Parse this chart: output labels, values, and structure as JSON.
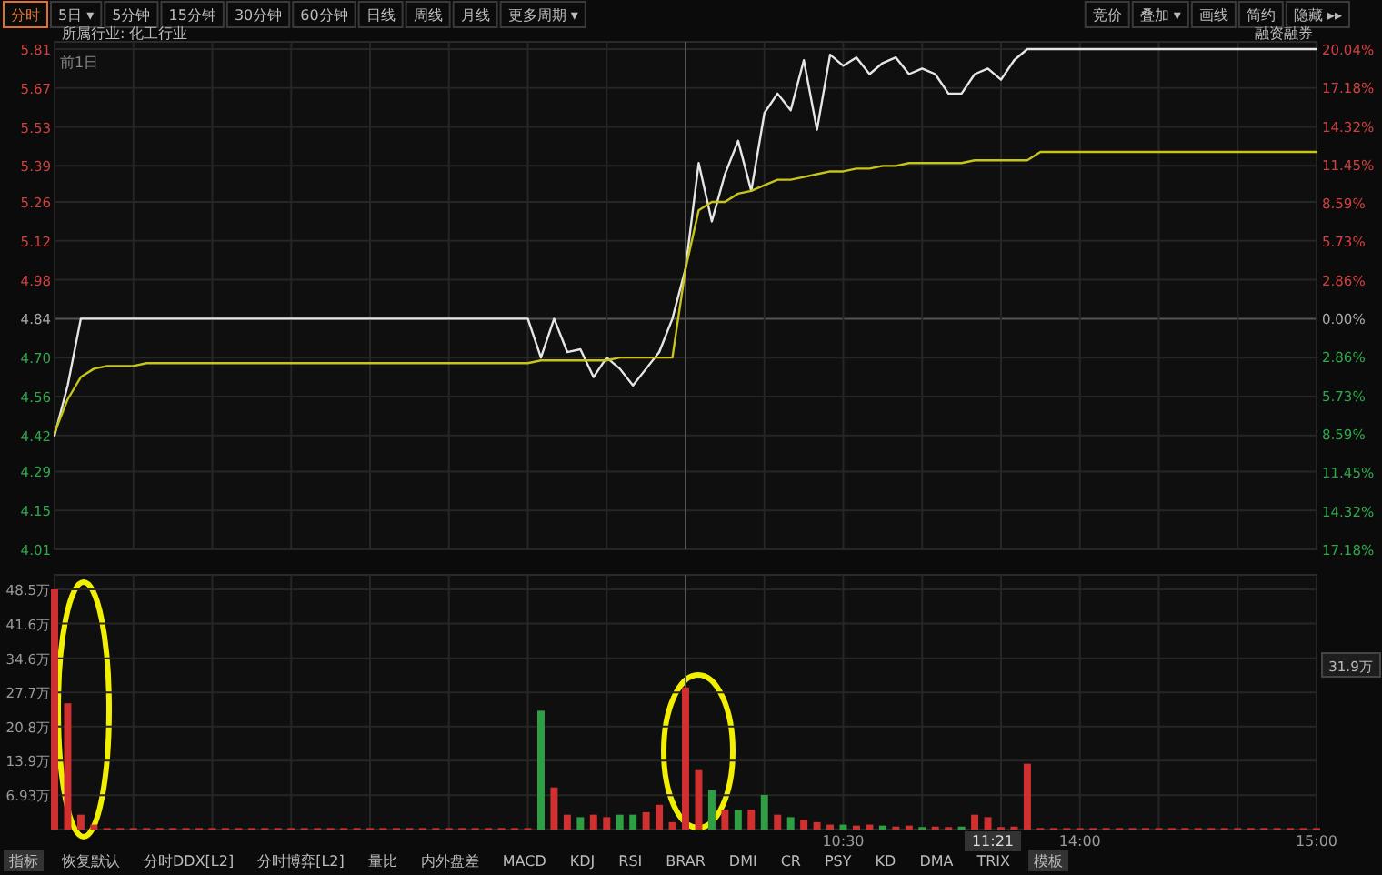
{
  "chart_data": [
    {
      "type": "line",
      "categories": [
        null,
        null,
        null,
        null,
        null,
        null,
        null,
        null,
        null,
        null,
        null,
        null,
        null,
        null,
        null,
        null,
        null,
        null,
        null,
        null,
        null,
        null,
        null,
        null,
        null,
        null,
        null,
        null,
        null,
        null,
        null,
        null,
        null,
        null,
        null,
        null,
        null,
        null,
        null,
        null,
        null,
        null,
        null,
        null,
        null,
        null,
        null,
        null,
        null,
        null,
        null,
        null,
        null,
        null,
        null,
        null,
        null,
        null,
        null,
        null,
        null,
        null,
        null,
        null,
        null,
        null,
        null,
        null,
        null,
        null,
        null,
        null,
        null,
        null,
        null,
        null,
        null,
        null,
        null,
        null,
        null,
        null,
        null,
        null,
        null,
        null,
        null,
        null,
        null,
        null,
        null,
        null,
        null,
        null,
        null,
        null,
        null
      ],
      "series": [
        {
          "color": "#e6e6e6",
          "values": [
            4.42,
            4.6,
            4.84,
            4.84,
            4.84,
            4.84,
            4.84,
            4.84,
            4.84,
            4.84,
            4.84,
            4.84,
            4.84,
            4.84,
            4.84,
            4.84,
            4.84,
            4.84,
            4.84,
            4.84,
            4.84,
            4.84,
            4.84,
            4.84,
            4.84,
            4.84,
            4.84,
            4.84,
            4.84,
            4.84,
            4.84,
            4.84,
            4.84,
            4.84,
            4.84,
            4.84,
            4.84,
            4.7,
            4.84,
            4.72,
            4.73,
            4.63,
            4.7,
            4.66,
            4.6,
            4.66,
            4.72,
            4.84,
            5.02,
            5.4,
            5.19,
            5.36,
            5.48,
            5.3,
            5.58,
            5.65,
            5.59,
            5.77,
            5.52,
            5.79,
            5.75,
            5.78,
            5.72,
            5.76,
            5.78,
            5.72,
            5.74,
            5.72,
            5.65,
            5.65,
            5.72,
            5.74,
            5.7,
            5.77,
            5.81,
            5.81,
            5.81,
            5.81,
            5.81,
            5.81,
            5.81,
            5.81,
            5.81,
            5.81,
            5.81,
            5.81,
            5.81,
            5.81,
            5.81,
            5.81,
            5.81,
            5.81,
            5.81,
            5.81,
            5.81,
            5.81,
            5.81
          ]
        },
        {
          "color": "#c8c41a",
          "values": [
            4.43,
            4.55,
            4.63,
            4.66,
            4.67,
            4.67,
            4.67,
            4.68,
            4.68,
            4.68,
            4.68,
            4.68,
            4.68,
            4.68,
            4.68,
            4.68,
            4.68,
            4.68,
            4.68,
            4.68,
            4.68,
            4.68,
            4.68,
            4.68,
            4.68,
            4.68,
            4.68,
            4.68,
            4.68,
            4.68,
            4.68,
            4.68,
            4.68,
            4.68,
            4.68,
            4.68,
            4.68,
            4.69,
            4.69,
            4.69,
            4.69,
            4.69,
            4.69,
            4.7,
            4.7,
            4.7,
            4.7,
            4.7,
            5.02,
            5.23,
            5.26,
            5.26,
            5.29,
            5.3,
            5.32,
            5.34,
            5.34,
            5.35,
            5.36,
            5.37,
            5.37,
            5.38,
            5.38,
            5.39,
            5.39,
            5.4,
            5.4,
            5.4,
            5.4,
            5.4,
            5.41,
            5.41,
            5.41,
            5.41,
            5.41,
            5.44,
            5.44,
            5.44,
            5.44,
            5.44,
            5.44,
            5.44,
            5.44,
            5.44,
            5.44,
            5.44,
            5.44,
            5.44,
            5.44,
            5.44,
            5.44,
            5.44,
            5.44,
            5.44,
            5.44,
            5.44,
            5.44
          ]
        }
      ],
      "ylim": [
        4.01,
        5.81
      ],
      "yticks": [
        5.81,
        5.67,
        5.53,
        5.39,
        5.26,
        5.12,
        4.98,
        4.84,
        {
          "value": 4.7,
          "label": "4.70"
        },
        4.56,
        4.42,
        4.29,
        4.15,
        4.01
      ],
      "y2lim": [
        -17.18,
        20.04
      ],
      "y2ticks": [
        {
          "value": 20.04,
          "label": "20.04%"
        },
        {
          "value": 17.18,
          "label": "17.18%"
        },
        {
          "value": 14.32,
          "label": "14.32%"
        },
        {
          "value": 11.45,
          "label": "11.45%"
        },
        {
          "value": 8.59,
          "label": "8.59%"
        },
        {
          "value": 5.73,
          "label": "5.73%"
        },
        {
          "value": 2.86,
          "label": "2.86%"
        },
        {
          "value": 0,
          "label": "0.00%"
        },
        {
          "value": -2.86,
          "label": "2.86%"
        },
        {
          "value": -5.73,
          "label": "5.73%"
        },
        {
          "value": -8.59,
          "label": "8.59%"
        },
        {
          "value": -11.45,
          "label": "11.45%"
        },
        {
          "value": -14.32,
          "label": "14.32%"
        },
        {
          "value": -17.18,
          "label": "17.18%"
        }
      ],
      "grid": true,
      "annotations": [
        "分时",
        "5日 ▾",
        "5分钟",
        "15分钟",
        "30分钟",
        "60分钟",
        "日线",
        "周线",
        "月线",
        "更多周期 ▾",
        "竞价",
        "叠加 ▾",
        "画线",
        "简约",
        "隐藏 ▸▸",
        "所属行业: 化工行业",
        "前1日",
        "融资融券"
      ]
    },
    {
      "type": "bar",
      "categories": [
        null,
        null,
        null,
        null,
        null,
        null,
        null,
        null,
        null,
        null,
        null,
        null,
        null,
        null,
        null,
        null,
        null,
        null,
        null,
        null,
        null,
        null,
        null,
        null,
        null,
        null,
        null,
        null,
        null,
        null,
        null,
        null,
        null,
        null,
        null,
        null,
        null,
        null,
        null,
        null,
        null,
        null,
        null,
        null,
        null,
        null,
        null,
        null,
        null,
        null,
        null,
        null,
        null,
        null,
        null,
        null,
        null,
        null,
        null,
        null,
        "10:30",
        null,
        null,
        null,
        null,
        null,
        null,
        null,
        null,
        null,
        null,
        null,
        null,
        null,
        null,
        null,
        null,
        null,
        "14:00",
        null,
        null,
        null,
        null,
        null,
        null,
        null,
        null,
        null,
        null,
        null,
        null,
        null,
        null,
        null,
        null,
        null,
        "15:00"
      ],
      "values": [
        48.5,
        25.5,
        3,
        1,
        0.3,
        0.3,
        0.3,
        0.3,
        0.3,
        0.3,
        0.3,
        0.3,
        0.3,
        0.3,
        0.3,
        0.3,
        0.3,
        0.3,
        0.3,
        0.3,
        0.3,
        0.3,
        0.3,
        0.3,
        0.3,
        0.3,
        0.3,
        0.3,
        0.3,
        0.3,
        0.3,
        0.3,
        0.3,
        0.3,
        0.3,
        0.3,
        0.3,
        24,
        8.5,
        3,
        2.5,
        3,
        2.5,
        3,
        3,
        3.5,
        5,
        1.5,
        28.7,
        12,
        8,
        4,
        4,
        4,
        7,
        3,
        2.5,
        2,
        1.5,
        1,
        1,
        0.8,
        1,
        0.8,
        0.6,
        0.8,
        0.5,
        0.6,
        0.5,
        0.6,
        3,
        2.5,
        0.5,
        0.6,
        13.3,
        0.3,
        0.3,
        0.3,
        0.3,
        0.3,
        0.3,
        0.3,
        0.3,
        0.3,
        0.3,
        0.3,
        0.3,
        0.3,
        0.3,
        0.3,
        0.3,
        0.3,
        0.3,
        0.3,
        0.3,
        0.3,
        0.3
      ],
      "colors": [
        "#d03030",
        "#d03030",
        "#d03030",
        "#d03030",
        "#d03030",
        "#d03030",
        "#d03030",
        "#d03030",
        "#d03030",
        "#d03030",
        "#d03030",
        "#d03030",
        "#d03030",
        "#d03030",
        "#d03030",
        "#d03030",
        "#d03030",
        "#d03030",
        "#d03030",
        "#d03030",
        "#d03030",
        "#d03030",
        "#d03030",
        "#d03030",
        "#d03030",
        "#d03030",
        "#d03030",
        "#d03030",
        "#d03030",
        "#d03030",
        "#d03030",
        "#d03030",
        "#d03030",
        "#d03030",
        "#d03030",
        "#d03030",
        "#d03030",
        "#2ea043",
        "#d03030",
        "#d03030",
        "#2ea043",
        "#d03030",
        "#d03030",
        "#2ea043",
        "#2ea043",
        "#d03030",
        "#d03030",
        "#d03030",
        "#d03030",
        "#d03030",
        "#2ea043",
        "#d03030",
        "#2ea043",
        "#d03030",
        "#2ea043",
        "#d03030",
        "#2ea043",
        "#d03030",
        "#d03030",
        "#d03030",
        "#2ea043",
        "#d03030",
        "#d03030",
        "#2ea043",
        "#d03030",
        "#d03030",
        "#2ea043",
        "#d03030",
        "#d03030",
        "#2ea043",
        "#d03030",
        "#d03030",
        "#d03030",
        "#d03030",
        "#d03030",
        "#d03030",
        "#d03030",
        "#d03030",
        "#d03030",
        "#d03030",
        "#d03030",
        "#d03030",
        "#d03030",
        "#d03030",
        "#d03030",
        "#d03030",
        "#d03030",
        "#d03030",
        "#d03030",
        "#d03030",
        "#d03030",
        "#d03030",
        "#d03030",
        "#d03030",
        "#d03030",
        "#d03030",
        "#d03030"
      ],
      "ylim": [
        0,
        48.5
      ],
      "yticks": [
        {
          "value": 48.5,
          "label": "48.5万"
        },
        {
          "value": 41.6,
          "label": "41.6万"
        },
        {
          "value": 34.6,
          "label": "34.6万"
        },
        {
          "value": 27.7,
          "label": "27.7万"
        },
        {
          "value": 20.8,
          "label": "20.8万"
        },
        {
          "value": 13.9,
          "label": "13.9万"
        },
        {
          "value": 6.93,
          "label": "6.93万"
        }
      ],
      "grid": true,
      "annotations": [
        "指标",
        "恢复默认",
        "分时DDX[L2]",
        "分时博弈[L2]",
        "量比",
        "内外盘差",
        "MACD",
        "KDJ",
        "RSI",
        "BRAR",
        "DMI",
        "CR",
        "PSY",
        "KD",
        "DMA",
        "TRIX",
        "模板",
        "11:21",
        "31.9万"
      ]
    }
  ]
}
